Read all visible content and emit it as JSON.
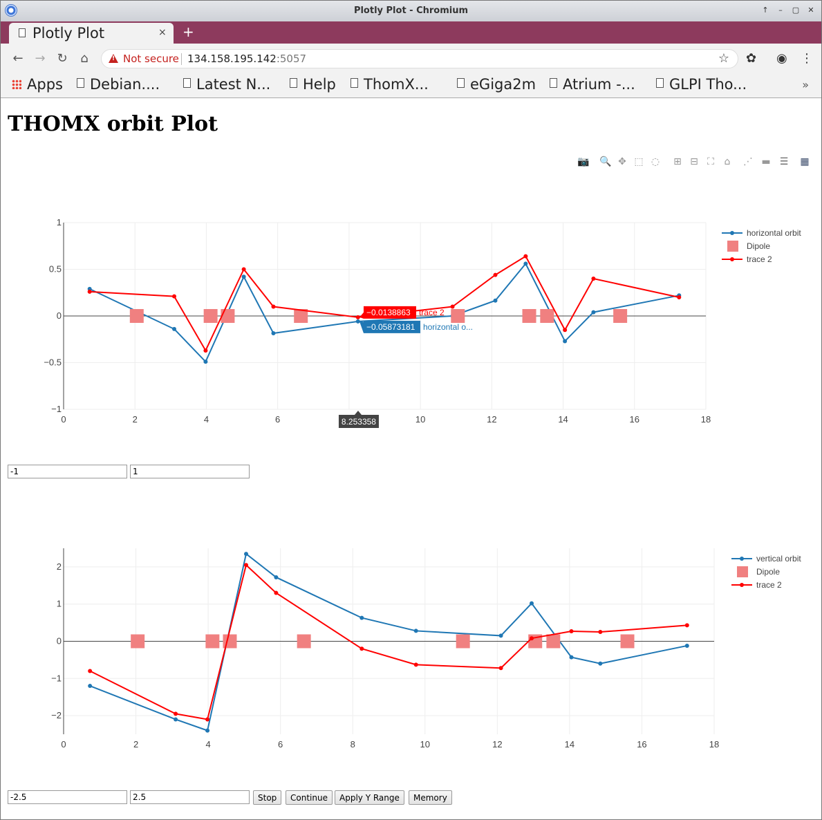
{
  "window": {
    "title": "Plotly Plot - Chromium",
    "controls": [
      "up-icon",
      "minimize-icon",
      "maximize-icon",
      "close-icon"
    ]
  },
  "tab": {
    "label": "Plotly Plot",
    "close": "×",
    "new_tab": "+"
  },
  "address": {
    "security": "Not secure",
    "host": "134.158.195.142",
    "port": ":5057"
  },
  "bookmarks": [
    {
      "label": "Apps",
      "icon": "apps-grid-icon"
    },
    {
      "label": "Debian....",
      "icon": "page-icon"
    },
    {
      "label": "Latest N...",
      "icon": "page-icon"
    },
    {
      "label": "Help",
      "icon": "page-icon"
    },
    {
      "label": "ThomX...",
      "icon": "page-icon"
    },
    {
      "label": "eGiga2m",
      "icon": "page-icon"
    },
    {
      "label": "Atrium -...",
      "icon": "page-icon"
    },
    {
      "label": "GLPI Tho...",
      "icon": "page-icon"
    }
  ],
  "page": {
    "title": "THOMX orbit Plot"
  },
  "modebar": [
    "camera-icon",
    "zoom-icon",
    "pan-icon",
    "box-select-icon",
    "lasso-select-icon",
    "zoom-in-icon",
    "zoom-out-icon",
    "autoscale-icon",
    "reset-axes-icon",
    "spike-lines-icon",
    "hover-closest-icon",
    "hover-compare-icon",
    "plotly-logo-icon"
  ],
  "colors": {
    "blue": "#1f77b4",
    "red": "#ff0000",
    "dipole": "#f08080"
  },
  "chart_data": [
    {
      "type": "line",
      "xlim": [
        0,
        18
      ],
      "ylim": [
        -1,
        1
      ],
      "xticks": [
        "0",
        "2",
        "4",
        "6",
        "8",
        "10",
        "12",
        "14",
        "16",
        "18"
      ],
      "yticks": [
        "−1",
        "−0.5",
        "0",
        "0.5",
        "1"
      ],
      "grid": true,
      "legend_placement": "top-right",
      "series": [
        {
          "name": "horizontal orbit",
          "color": "#1f77b4",
          "x": [
            0.73,
            3.1,
            3.98,
            5.05,
            5.88,
            8.25,
            10.9,
            12.1,
            12.95,
            14.05,
            14.85,
            17.25
          ],
          "y": [
            0.29,
            -0.14,
            -0.49,
            0.42,
            -0.185,
            -0.0587,
            0.0,
            0.165,
            0.56,
            -0.27,
            0.04,
            0.22
          ]
        },
        {
          "name": "Dipole",
          "marker": "square",
          "color": "#f08080",
          "x": [
            2.05,
            4.12,
            4.6,
            6.65,
            11.05,
            13.05,
            13.55,
            15.6
          ],
          "y": [
            0,
            0,
            0,
            0,
            0,
            0,
            0,
            0
          ]
        },
        {
          "name": "trace 2",
          "color": "#ff0000",
          "x": [
            0.73,
            3.1,
            3.98,
            5.05,
            5.88,
            8.25,
            10.9,
            12.1,
            12.95,
            14.05,
            14.85,
            17.25
          ],
          "y": [
            0.26,
            0.21,
            -0.37,
            0.5,
            0.1,
            -0.0139,
            0.1,
            0.44,
            0.64,
            -0.15,
            0.4,
            0.2
          ]
        }
      ],
      "hover": {
        "x_label": "8.253358",
        "labels": [
          {
            "value": "−0.0138863",
            "name": "trace 2",
            "color": "#ff0000"
          },
          {
            "value": "−0.05873181",
            "name": "horizontal o...",
            "color": "#1f77b4"
          }
        ]
      },
      "range_inputs": {
        "min": "-1",
        "max": "1"
      }
    },
    {
      "type": "line",
      "xlim": [
        0,
        18
      ],
      "ylim": [
        -2.5,
        2.5
      ],
      "xticks": [
        "0",
        "2",
        "4",
        "6",
        "8",
        "10",
        "12",
        "14",
        "16",
        "18"
      ],
      "yticks": [
        "−2",
        "−1",
        "0",
        "1",
        "2"
      ],
      "grid": true,
      "legend_placement": "top-right",
      "series": [
        {
          "name": "vertical orbit",
          "color": "#1f77b4",
          "x": [
            0.73,
            3.1,
            3.98,
            5.05,
            5.88,
            8.25,
            9.75,
            12.1,
            12.95,
            14.05,
            14.85,
            17.25
          ],
          "y": [
            -1.2,
            -2.1,
            -2.4,
            2.35,
            1.72,
            0.63,
            0.28,
            0.15,
            1.02,
            -0.43,
            -0.6,
            -0.12
          ]
        },
        {
          "name": "Dipole",
          "marker": "square",
          "color": "#f08080",
          "x": [
            2.05,
            4.12,
            4.6,
            6.65,
            11.05,
            13.05,
            13.55,
            15.6
          ],
          "y": [
            0,
            0,
            0,
            0,
            0,
            0,
            0,
            0
          ]
        },
        {
          "name": "trace 2",
          "color": "#ff0000",
          "x": [
            0.73,
            3.1,
            3.98,
            5.05,
            5.88,
            8.25,
            9.75,
            12.1,
            12.95,
            14.05,
            14.85,
            17.25
          ],
          "y": [
            -0.8,
            -1.95,
            -2.1,
            2.05,
            1.3,
            -0.2,
            -0.63,
            -0.72,
            0.08,
            0.27,
            0.25,
            0.43
          ]
        }
      ],
      "range_inputs": {
        "min": "-2.5",
        "max": "2.5"
      }
    }
  ],
  "buttons": {
    "stop": "Stop",
    "continue": "Continue",
    "apply": "Apply Y Range",
    "memory": "Memory"
  }
}
